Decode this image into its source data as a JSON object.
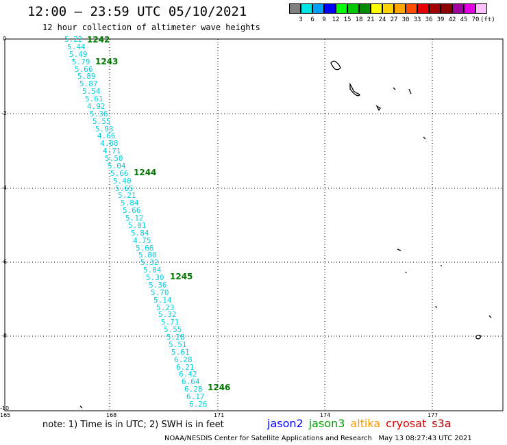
{
  "title": "12:00 – 23:59 UTC 05/10/2021",
  "subtitle": "12 hour collection of altimeter wave heights",
  "colorbar": {
    "colors": [
      "#808080",
      "#00e5e5",
      "#00a0ff",
      "#0000ff",
      "#00ff00",
      "#00c800",
      "#008c00",
      "#ffff00",
      "#ffd200",
      "#ffa500",
      "#ff5000",
      "#e60000",
      "#a00000",
      "#8b0000",
      "#a000a0",
      "#e000e0",
      "#ffc0ff"
    ],
    "labels": [
      "3",
      "6",
      "9",
      "12",
      "15",
      "18",
      "21",
      "24",
      "27",
      "30",
      "33",
      "36",
      "39",
      "42",
      "45",
      "70",
      "(ft)"
    ]
  },
  "axes": {
    "x_ticks": [
      "165",
      "168",
      "171",
      "174",
      "177"
    ],
    "y_ticks": [
      "0",
      "-2",
      "-4",
      "-6",
      "-8",
      "-10"
    ]
  },
  "track_labels": [
    "1242",
    "1243",
    "1244",
    "1245",
    "1246"
  ],
  "swh_values": [
    "5.22",
    "5.44",
    "5.49",
    "5.79",
    "5.66",
    "5.89",
    "5.87",
    "5.54",
    "5.61",
    "4.92",
    "5.36",
    "5.55",
    "5.93",
    "4.66",
    "4.88",
    "4.71",
    "5.50",
    "5.04",
    "5.66",
    "5.40",
    "5.65",
    "5.21",
    "5.84",
    "5.66",
    "5.12",
    "5.01",
    "5.84",
    "4.75",
    "5.66",
    "5.80",
    "5.32",
    "5.04",
    "5.30",
    "5.36",
    "5.70",
    "5.14",
    "5.23",
    "5.32",
    "5.71",
    "5.55",
    "5.28",
    "5.51",
    "5.61",
    "6.28",
    "6.21",
    "6.42",
    "6.64",
    "6.28",
    "6.17",
    "6.26"
  ],
  "note": "note: 1) Time is in UTC; 2) SWH is in feet",
  "satellites": [
    {
      "name": "jason2",
      "color": "#0000ff"
    },
    {
      "name": "jason3",
      "color": "#00a000"
    },
    {
      "name": "altika",
      "color": "#ff9900"
    },
    {
      "name": "cryosat",
      "color": "#e00000"
    },
    {
      "name": "s3a",
      "color": "#b00000"
    }
  ],
  "credit": "NOAA/NESDIS Center for Satellite Applications and Research   May 13 08:27:43 UTC 2021"
}
